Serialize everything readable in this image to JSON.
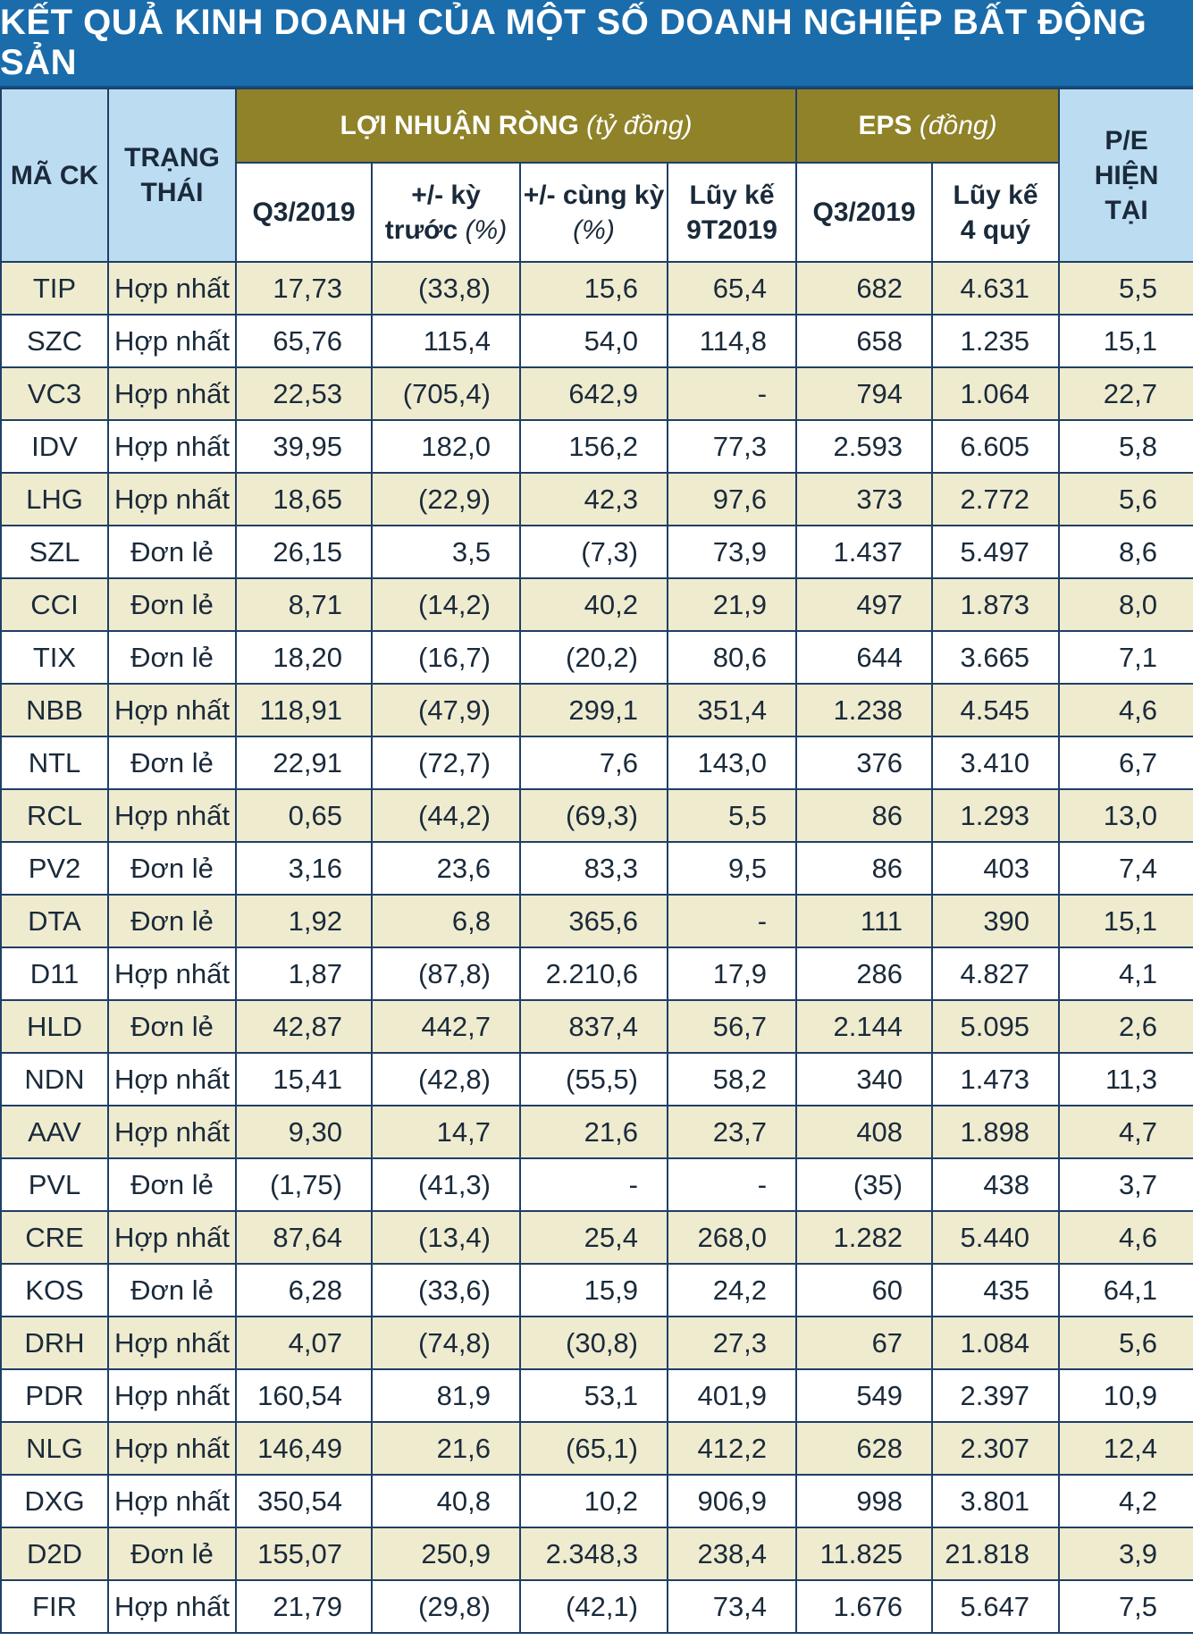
{
  "title": "KẾT QUẢ KINH DOANH CỦA MỘT SỐ DOANH NGHIỆP BẤT ĐỘNG SẢN",
  "headers": {
    "code": "MÃ CK",
    "status": "TRẠNG THÁI",
    "profit_group": "LỢI NHUẬN RÒNG",
    "profit_unit": "(tỷ đồng)",
    "eps_group": "EPS",
    "eps_unit": "(đồng)",
    "pe": "P/E HIỆN TẠI",
    "q3": "Q3/2019",
    "prev_change": "+/- kỳ trước",
    "prev_change_unit": "(%)",
    "yoy_change": "+/- cùng kỳ",
    "yoy_change_unit": "(%)",
    "accum_9t": "Lũy kế 9T2019",
    "eps_q3": "Q3/2019",
    "eps_4q": "Lũy kế 4 quý"
  },
  "rows": [
    [
      "TIP",
      "Hợp nhất",
      "17,73",
      "(33,8)",
      "15,6",
      "65,4",
      "682",
      "4.631",
      "5,5"
    ],
    [
      "SZC",
      "Hợp nhất",
      "65,76",
      "115,4",
      "54,0",
      "114,8",
      "658",
      "1.235",
      "15,1"
    ],
    [
      "VC3",
      "Hợp nhất",
      "22,53",
      "(705,4)",
      "642,9",
      "-",
      "794",
      "1.064",
      "22,7"
    ],
    [
      "IDV",
      "Hợp nhất",
      "39,95",
      "182,0",
      "156,2",
      "77,3",
      "2.593",
      "6.605",
      "5,8"
    ],
    [
      "LHG",
      "Hợp nhất",
      "18,65",
      "(22,9)",
      "42,3",
      "97,6",
      "373",
      "2.772",
      "5,6"
    ],
    [
      "SZL",
      "Đơn lẻ",
      "26,15",
      "3,5",
      "(7,3)",
      "73,9",
      "1.437",
      "5.497",
      "8,6"
    ],
    [
      "CCI",
      "Đơn lẻ",
      "8,71",
      "(14,2)",
      "40,2",
      "21,9",
      "497",
      "1.873",
      "8,0"
    ],
    [
      "TIX",
      "Đơn lẻ",
      "18,20",
      "(16,7)",
      "(20,2)",
      "80,6",
      "644",
      "3.665",
      "7,1"
    ],
    [
      "NBB",
      "Hợp nhất",
      "118,91",
      "(47,9)",
      "299,1",
      "351,4",
      "1.238",
      "4.545",
      "4,6"
    ],
    [
      "NTL",
      "Đơn lẻ",
      "22,91",
      "(72,7)",
      "7,6",
      "143,0",
      "376",
      "3.410",
      "6,7"
    ],
    [
      "RCL",
      "Hợp nhất",
      "0,65",
      "(44,2)",
      "(69,3)",
      "5,5",
      "86",
      "1.293",
      "13,0"
    ],
    [
      "PV2",
      "Đơn lẻ",
      "3,16",
      "23,6",
      "83,3",
      "9,5",
      "86",
      "403",
      "7,4"
    ],
    [
      "DTA",
      "Đơn lẻ",
      "1,92",
      "6,8",
      "365,6",
      "-",
      "111",
      "390",
      "15,1"
    ],
    [
      "D11",
      "Hợp nhất",
      "1,87",
      "(87,8)",
      "2.210,6",
      "17,9",
      "286",
      "4.827",
      "4,1"
    ],
    [
      "HLD",
      "Đơn lẻ",
      "42,87",
      "442,7",
      "837,4",
      "56,7",
      "2.144",
      "5.095",
      "2,6"
    ],
    [
      "NDN",
      "Hợp nhất",
      "15,41",
      "(42,8)",
      "(55,5)",
      "58,2",
      "340",
      "1.473",
      "11,3"
    ],
    [
      "AAV",
      "Hợp nhất",
      "9,30",
      "14,7",
      "21,6",
      "23,7",
      "408",
      "1.898",
      "4,7"
    ],
    [
      "PVL",
      "Đơn lẻ",
      "(1,75)",
      "(41,3)",
      "-",
      "-",
      "(35)",
      "438",
      "3,7"
    ],
    [
      "CRE",
      "Hợp nhất",
      "87,64",
      "(13,4)",
      "25,4",
      "268,0",
      "1.282",
      "5.440",
      "4,6"
    ],
    [
      "KOS",
      "Đơn lẻ",
      "6,28",
      "(33,6)",
      "15,9",
      "24,2",
      "60",
      "435",
      "64,1"
    ],
    [
      "DRH",
      "Hợp nhất",
      "4,07",
      "(74,8)",
      "(30,8)",
      "27,3",
      "67",
      "1.084",
      "5,6"
    ],
    [
      "PDR",
      "Hợp nhất",
      "160,54",
      "81,9",
      "53,1",
      "401,9",
      "549",
      "2.397",
      "10,9"
    ],
    [
      "NLG",
      "Hợp nhất",
      "146,49",
      "21,6",
      "(65,1)",
      "412,2",
      "628",
      "2.307",
      "12,4"
    ],
    [
      "DXG",
      "Hợp nhất",
      "350,54",
      "40,8",
      "10,2",
      "906,9",
      "998",
      "3.801",
      "4,2"
    ],
    [
      "D2D",
      "Đơn lẻ",
      "155,07",
      "250,9",
      "2.348,3",
      "238,4",
      "11.825",
      "21.818",
      "3,9"
    ],
    [
      "FIR",
      "Hợp nhất",
      "21,79",
      "(29,8)",
      "(42,1)",
      "73,4",
      "1.676",
      "5.647",
      "7,5"
    ]
  ]
}
